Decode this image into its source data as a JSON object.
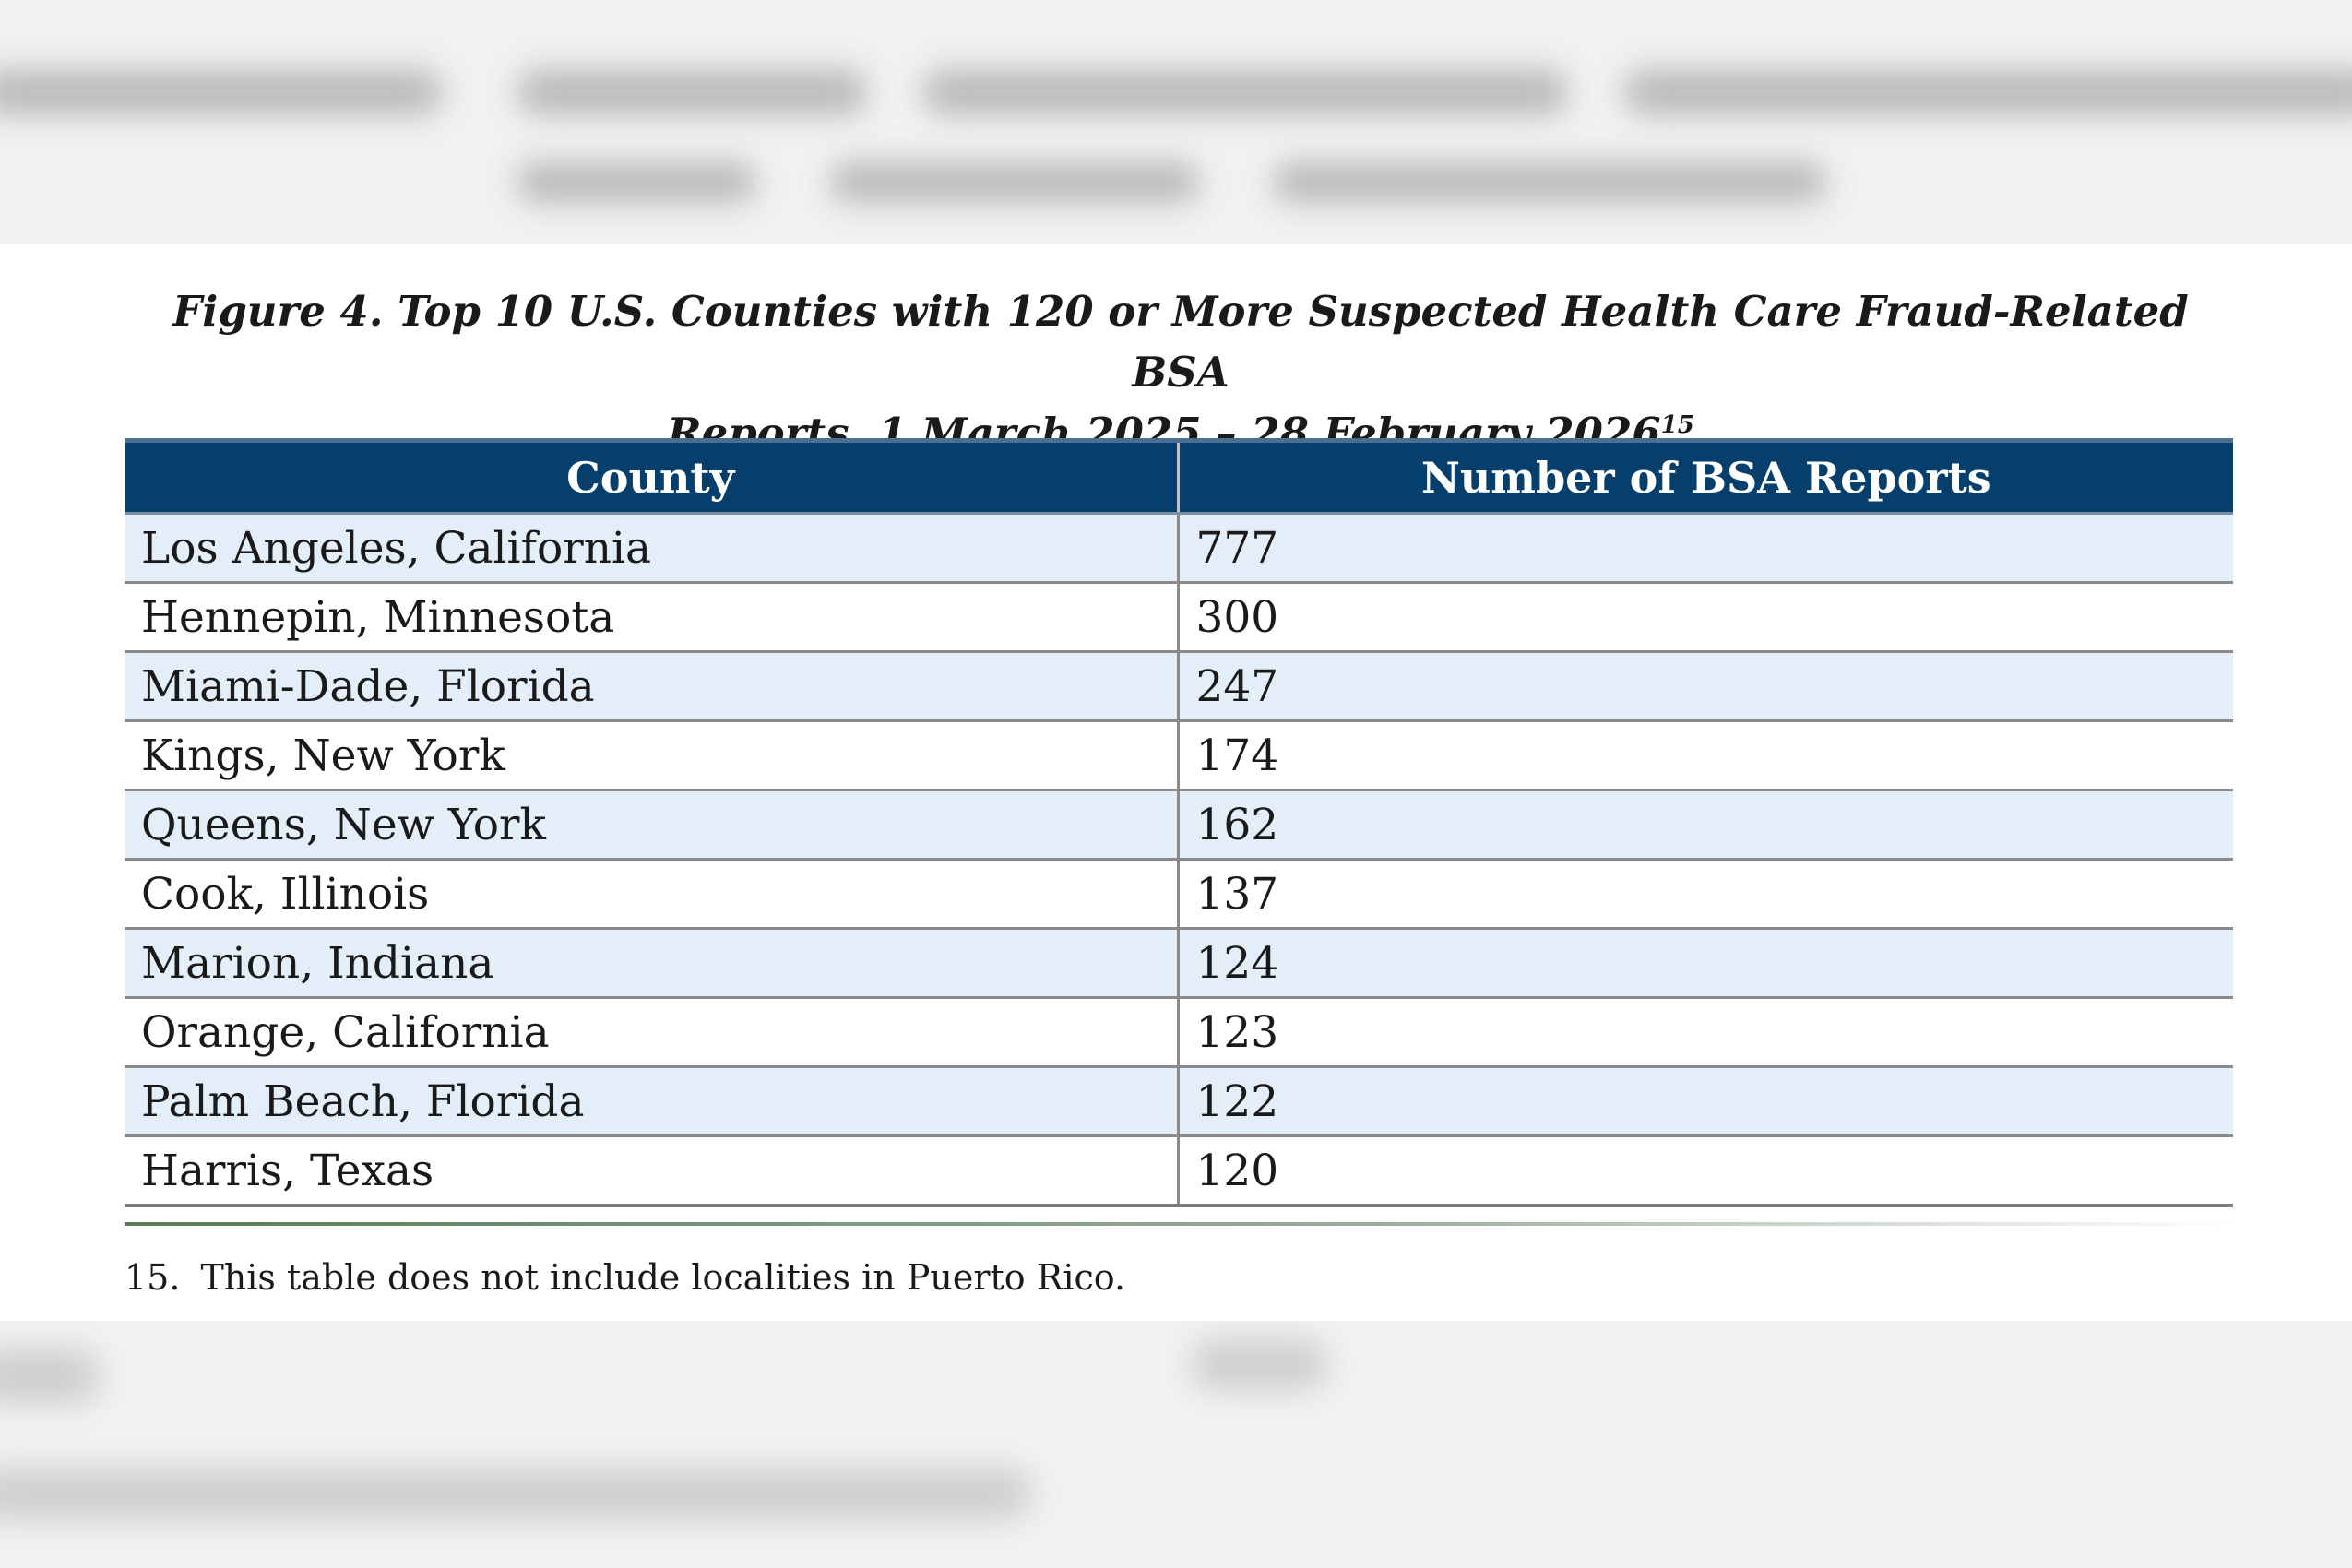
{
  "figure": {
    "title_line1": "Figure 4. Top 10 U.S. Counties with 120 or More Suspected Health Care Fraud-Related BSA",
    "title_line2": "Reports, 1 March 2025 – 28 February 2026",
    "footnote_ref": "15"
  },
  "table": {
    "headers": [
      "County",
      "Number of BSA Reports"
    ],
    "rows": [
      [
        "Los Angeles, California",
        "777"
      ],
      [
        "Hennepin, Minnesota",
        "300"
      ],
      [
        "Miami-Dade, Florida",
        "247"
      ],
      [
        "Kings, New York",
        "174"
      ],
      [
        "Queens, New York",
        "162"
      ],
      [
        "Cook, Illinois",
        "137"
      ],
      [
        "Marion, Indiana",
        "124"
      ],
      [
        "Orange, California",
        "123"
      ],
      [
        "Palm Beach, Florida",
        "122"
      ],
      [
        "Harris, Texas",
        "120"
      ]
    ]
  },
  "footnote": {
    "number": "15.",
    "text": "This table does not include localities in Puerto Rico."
  },
  "colors": {
    "header_bg": "#063f6b",
    "row_shade": "#e4eef8"
  }
}
